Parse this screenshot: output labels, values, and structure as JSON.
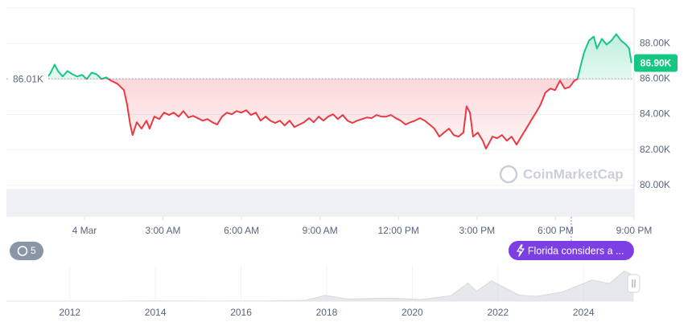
{
  "chart_data": [
    {
      "type": "line",
      "color_up": "#16c784",
      "color_down": "#ea3943",
      "x": [
        -1.44,
        -1.32,
        -1.14,
        -1.01,
        -0.83,
        -0.65,
        -0.46,
        -0.28,
        -0.09,
        0.09,
        0.28,
        0.46,
        0.65,
        0.83,
        1.01,
        1.26,
        1.51,
        1.63,
        1.75,
        1.84,
        2.0,
        2.18,
        2.37,
        2.49,
        2.67,
        2.86,
        3.04,
        3.23,
        3.41,
        3.6,
        3.78,
        3.97,
        4.15,
        4.33,
        4.52,
        4.7,
        4.89,
        5.07,
        5.26,
        5.44,
        5.63,
        5.81,
        5.99,
        6.18,
        6.36,
        6.55,
        6.73,
        6.92,
        7.1,
        7.29,
        7.47,
        7.65,
        7.84,
        8.02,
        8.21,
        8.39,
        8.58,
        8.76,
        8.95,
        9.13,
        9.31,
        9.5,
        9.68,
        9.87,
        10.05,
        10.24,
        10.42,
        10.61,
        10.79,
        10.97,
        11.16,
        11.34,
        11.53,
        11.71,
        11.9,
        12.08,
        12.27,
        12.45,
        12.63,
        12.82,
        13.0,
        13.19,
        13.37,
        13.56,
        13.74,
        13.93,
        14.11,
        14.29,
        14.48,
        14.6,
        14.73,
        14.85,
        15.03,
        15.22,
        15.34,
        15.46,
        15.59,
        15.77,
        15.95,
        16.14,
        16.32,
        16.51,
        16.69,
        16.88,
        17.06,
        17.25,
        17.43,
        17.61,
        17.8,
        17.98,
        18.17,
        18.35,
        18.54,
        18.72,
        18.84,
        18.97,
        19.09,
        19.28,
        19.46,
        19.58,
        19.77,
        19.95,
        20.14,
        20.32,
        20.5,
        20.69,
        20.81,
        20.9
      ],
      "values": [
        86.09,
        86.27,
        86.81,
        86.45,
        86.14,
        86.45,
        86.27,
        86.14,
        86.23,
        86.0,
        86.36,
        86.27,
        86.0,
        86.09,
        85.91,
        85.73,
        85.37,
        84.56,
        83.43,
        82.84,
        83.56,
        83.2,
        83.65,
        83.2,
        83.88,
        83.74,
        84.1,
        83.97,
        84.1,
        83.88,
        84.19,
        83.83,
        83.92,
        83.79,
        83.65,
        83.74,
        83.56,
        83.43,
        83.88,
        84.1,
        84.01,
        84.19,
        84.1,
        84.24,
        83.97,
        84.1,
        83.65,
        83.88,
        83.65,
        83.52,
        83.65,
        83.38,
        83.65,
        83.29,
        83.43,
        83.56,
        83.79,
        83.56,
        83.88,
        83.65,
        83.88,
        84.01,
        83.74,
        83.97,
        83.65,
        83.52,
        83.65,
        83.74,
        83.83,
        83.79,
        83.97,
        83.88,
        83.88,
        83.97,
        83.79,
        83.65,
        83.43,
        83.56,
        83.65,
        83.79,
        83.65,
        83.43,
        83.2,
        82.75,
        82.98,
        83.2,
        82.84,
        82.75,
        82.98,
        84.46,
        84.1,
        82.75,
        82.98,
        82.52,
        82.07,
        82.39,
        82.75,
        82.66,
        82.84,
        82.52,
        82.75,
        82.3,
        82.75,
        83.2,
        83.65,
        84.1,
        84.56,
        85.23,
        85.46,
        85.37,
        85.91,
        85.46,
        85.55,
        85.91,
        86.0,
        86.81,
        87.49,
        88.17,
        88.39,
        87.72,
        88.26,
        87.94,
        88.17,
        88.53,
        88.17,
        87.94,
        87.72,
        86.9
      ],
      "xlim": [
        -2.98,
        21.0
      ],
      "xticks": [
        {
          "value": 0,
          "label": "4 Mar"
        },
        {
          "value": 3,
          "label": "3:00 AM"
        },
        {
          "value": 6,
          "label": "6:00 AM"
        },
        {
          "value": 9,
          "label": "9:00 AM"
        },
        {
          "value": 12,
          "label": "12:00 PM"
        },
        {
          "value": 15,
          "label": "3:00 PM"
        },
        {
          "value": 18,
          "label": "6:00 PM"
        },
        {
          "value": 21,
          "label": "9:00 PM"
        }
      ],
      "ylim": [
        78.23,
        90
      ],
      "yticks": [
        {
          "value": 80,
          "label": "80.00K"
        },
        {
          "value": 82,
          "label": "82.00K"
        },
        {
          "value": 84,
          "label": "84.00K"
        },
        {
          "value": 86,
          "label": "86.00K"
        },
        {
          "value": 88,
          "label": "88.00K"
        }
      ],
      "grid": true,
      "baseline": {
        "value": 86.01,
        "label": "86.01K"
      },
      "current": {
        "value": 86.9,
        "label": "86.90K"
      },
      "watermark": "CoinMarketCap",
      "event_count": 5,
      "annotation": {
        "x": 18.6,
        "text": "Florida considers a ..."
      }
    },
    {
      "type": "area",
      "color": "#d5d9e0",
      "x": [
        2010.6,
        2011.5,
        2013.0,
        2013.9,
        2014.5,
        2015.5,
        2016.5,
        2017.5,
        2017.96,
        2018.5,
        2019.5,
        2020.2,
        2020.9,
        2021.3,
        2021.5,
        2021.85,
        2022.5,
        2022.9,
        2023.5,
        2024.2,
        2024.6,
        2024.95,
        2025.17
      ],
      "values": [
        0,
        0.01,
        0.1,
        1,
        0.6,
        0.25,
        0.65,
        2.5,
        19,
        7,
        10,
        5,
        18,
        60,
        33,
        67,
        20,
        16,
        30,
        70,
        58,
        100,
        85
      ],
      "xlim": [
        2010.52,
        2025.18
      ],
      "xticks": [
        2012,
        2014,
        2016,
        2018,
        2020,
        2022,
        2024
      ],
      "ylim": [
        0,
        120
      ]
    }
  ]
}
